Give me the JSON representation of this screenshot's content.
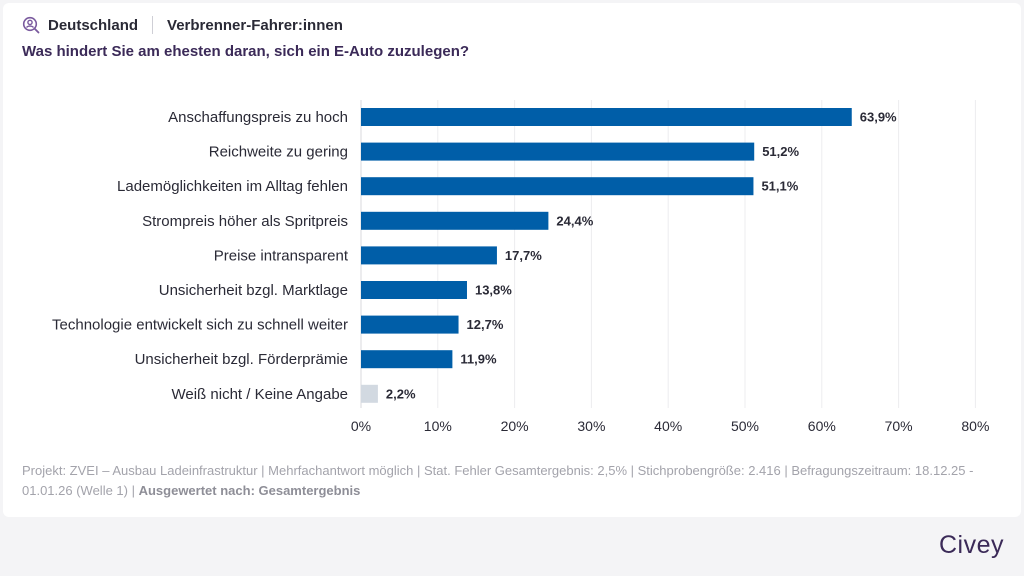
{
  "header": {
    "country": "Deutschland",
    "segment": "Verbrenner-Fahrer:innen",
    "icon": "person-search-icon"
  },
  "question": "Was hindert Sie am ehesten daran, sich ein E-Auto zuzulegen?",
  "chart_data": {
    "type": "bar",
    "orientation": "horizontal",
    "categories": [
      "Anschaffungspreis zu hoch",
      "Reichweite zu gering",
      "Lademöglichkeiten im Alltag fehlen",
      "Strompreis höher als Spritpreis",
      "Preise intransparent",
      "Unsicherheit bzgl. Marktlage",
      "Technologie entwickelt sich zu schnell weiter",
      "Unsicherheit bzgl. Förderprämie",
      "Weiß nicht / Keine Angabe"
    ],
    "values": [
      63.9,
      51.2,
      51.1,
      24.4,
      17.7,
      13.8,
      12.7,
      11.9,
      2.2
    ],
    "value_labels": [
      "63,9%",
      "51,2%",
      "51,1%",
      "24,4%",
      "17,7%",
      "13,8%",
      "12,7%",
      "11,9%",
      "2,2%"
    ],
    "bar_colors": [
      "#005ea8",
      "#005ea8",
      "#005ea8",
      "#005ea8",
      "#005ea8",
      "#005ea8",
      "#005ea8",
      "#005ea8",
      "#d2d9e1"
    ],
    "xlim": [
      0,
      80
    ],
    "xticks": [
      0,
      10,
      20,
      30,
      40,
      50,
      60,
      70,
      80
    ],
    "xtick_labels": [
      "0%",
      "10%",
      "20%",
      "30%",
      "40%",
      "50%",
      "60%",
      "70%",
      "80%"
    ],
    "grid": true
  },
  "footer": {
    "text": "Projekt: ZVEI – Ausbau Ladeinfrastruktur | Mehrfachantwort möglich | Stat. Fehler Gesamtergebnis: 2,5% | Stichprobengröße: 2.416 | Befragungszeitraum: 18.12.25 - 01.01.26 (Welle 1) | ",
    "bold": "Ausgewertet nach: Gesamtergebnis"
  },
  "brand": {
    "logo": "Civey",
    "accent_color": "#3b2a58"
  }
}
